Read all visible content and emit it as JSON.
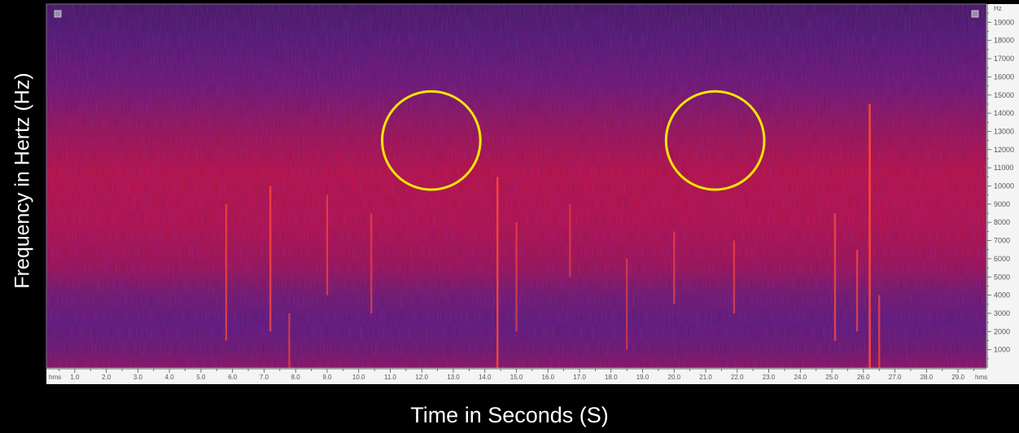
{
  "chart_data": {
    "type": "heatmap",
    "subtype": "spectrogram",
    "xlabel": "Time in Seconds (S)",
    "ylabel": "Frequency in Hertz (Hz)",
    "x_unit_label": "hms",
    "y_unit_label": "Hz",
    "x_ticks": [
      "1.0",
      "2.0",
      "3.0",
      "4.0",
      "5.0",
      "6.0",
      "7.0",
      "8.0",
      "9.0",
      "10.0",
      "11.0",
      "12.0",
      "13.0",
      "14.0",
      "15.0",
      "16.0",
      "17.0",
      "18.0",
      "19.0",
      "20.0",
      "21.0",
      "22.0",
      "23.0",
      "24.0",
      "25.0",
      "26.0",
      "27.0",
      "28.0",
      "29.0"
    ],
    "y_ticks": [
      1000,
      2000,
      3000,
      4000,
      5000,
      6000,
      7000,
      8000,
      9000,
      10000,
      11000,
      12000,
      13000,
      14000,
      15000,
      16000,
      17000,
      18000,
      19000
    ],
    "xlim": [
      0.1,
      29.9
    ],
    "ylim": [
      0,
      20000
    ],
    "grid": false,
    "colormap": [
      "#3a1a5c",
      "#5a1a7a",
      "#8a1560",
      "#c0103a",
      "#ff2020"
    ],
    "annotations": [
      {
        "type": "circle",
        "x": 12.3,
        "y": 12500,
        "radius_hz": 2700,
        "color": "#f5e600"
      },
      {
        "type": "circle",
        "x": 21.3,
        "y": 12500,
        "radius_hz": 2700,
        "color": "#f5e600"
      }
    ],
    "transients": [
      {
        "x": 5.8,
        "y0": 1500,
        "y1": 9000,
        "strength": 0.7
      },
      {
        "x": 7.2,
        "y0": 2000,
        "y1": 10000,
        "strength": 0.8
      },
      {
        "x": 7.8,
        "y0": 0,
        "y1": 3000,
        "strength": 0.6
      },
      {
        "x": 9.0,
        "y0": 4000,
        "y1": 9500,
        "strength": 0.6
      },
      {
        "x": 10.4,
        "y0": 3000,
        "y1": 8500,
        "strength": 0.6
      },
      {
        "x": 14.4,
        "y0": 0,
        "y1": 10500,
        "strength": 0.9
      },
      {
        "x": 15.0,
        "y0": 2000,
        "y1": 8000,
        "strength": 0.6
      },
      {
        "x": 16.7,
        "y0": 5000,
        "y1": 9000,
        "strength": 0.5
      },
      {
        "x": 18.5,
        "y0": 1000,
        "y1": 6000,
        "strength": 0.5
      },
      {
        "x": 20.0,
        "y0": 3500,
        "y1": 7500,
        "strength": 0.6
      },
      {
        "x": 21.9,
        "y0": 3000,
        "y1": 7000,
        "strength": 0.6
      },
      {
        "x": 25.1,
        "y0": 1500,
        "y1": 8500,
        "strength": 0.8
      },
      {
        "x": 25.8,
        "y0": 2000,
        "y1": 6500,
        "strength": 0.7
      },
      {
        "x": 26.2,
        "y0": 0,
        "y1": 14500,
        "strength": 1.0
      },
      {
        "x": 26.5,
        "y0": 0,
        "y1": 4000,
        "strength": 0.7
      }
    ]
  }
}
